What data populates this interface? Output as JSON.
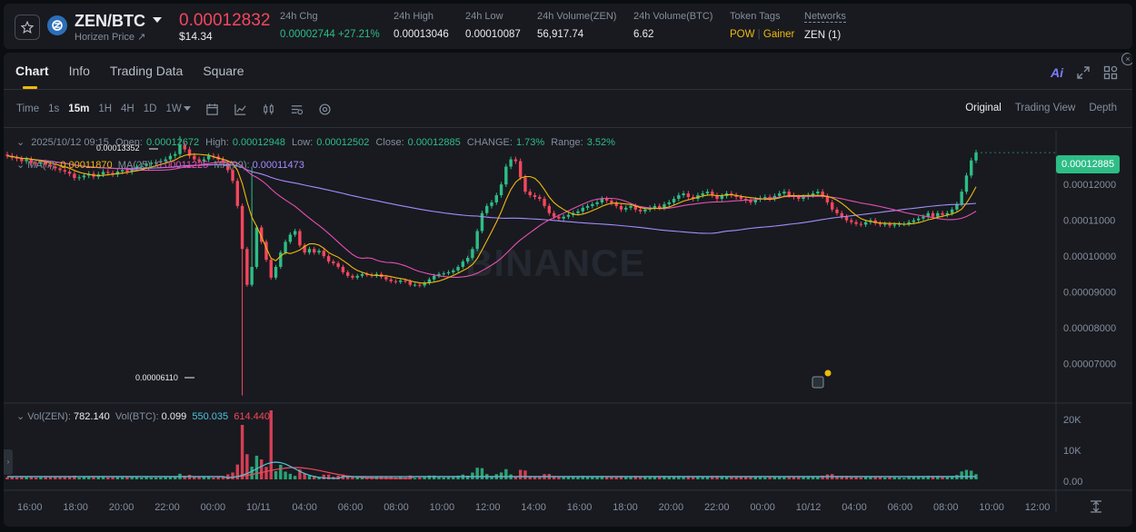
{
  "ticker": {
    "pair": "ZEN/BTC",
    "coin_name": "Horizen Price",
    "last_price": "0.00012832",
    "usd_price": "$14.34",
    "stats": [
      {
        "label": "24h Chg",
        "value": "0.00002744 +27.21%"
      },
      {
        "label": "24h High",
        "value": "0.00013046"
      },
      {
        "label": "24h Low",
        "value": "0.00010087"
      },
      {
        "label": "24h Volume(ZEN)",
        "value": "56,917.74"
      },
      {
        "label": "24h Volume(BTC)",
        "value": "6.62"
      }
    ],
    "token_tags_label": "Token Tags",
    "tag1": "POW",
    "tag2": "Gainer",
    "networks_label": "Networks",
    "networks_value": "ZEN (1)"
  },
  "tabs": [
    "Chart",
    "Info",
    "Trading Data",
    "Square"
  ],
  "ai_label": "Ai",
  "toolbar": {
    "time_label": "Time",
    "intervals": [
      "1s",
      "15m",
      "1H",
      "4H",
      "1D",
      "1W"
    ]
  },
  "views": [
    "Original",
    "Trading View",
    "Depth"
  ],
  "ohlc": {
    "date": "2025/10/12 09:15",
    "open_label": "Open:",
    "open": "0.00012672",
    "high_label": "High:",
    "high": "0.00012948",
    "low_label": "Low:",
    "low": "0.00012502",
    "close_label": "Close:",
    "close": "0.00012885",
    "change_label": "CHANGE:",
    "change": "1.73%",
    "range_label": "Range:",
    "range": "3.52%"
  },
  "ma": {
    "ma7_label": "MA(7)",
    "ma7": "0.00011870",
    "ma25_label": "MA(25)",
    "ma25": "0.00011225",
    "ma99_label": "MA(99)",
    "ma99": "0.00011473"
  },
  "current_price_tag": "0.00012885",
  "high_marker": "0.00013352",
  "low_marker": "0.00006110",
  "watermark": "BINANCE",
  "volume": {
    "zen_label": "Vol(ZEN):",
    "zen": "782.140",
    "btc_label": "Vol(BTC):",
    "btc": "0.099",
    "ma1": "550.035",
    "ma2": "614.440"
  },
  "colors": {
    "up": "#2ebd85",
    "down": "#f6465d",
    "ma7": "#f0b90b",
    "ma25": "#e84fb0",
    "ma99": "#a78bfa",
    "accent": "#f0b90b"
  },
  "chart_data": {
    "type": "candlestick",
    "price_axis": [
      "0.00012000",
      "0.00011000",
      "0.00010000",
      "0.00009000",
      "0.00008000",
      "0.00007000"
    ],
    "volume_axis": [
      "20K",
      "10K",
      "0.00"
    ],
    "time_axis": [
      "16:00",
      "18:00",
      "20:00",
      "22:00",
      "00:00",
      "10/11",
      "04:00",
      "06:00",
      "08:00",
      "10:00",
      "12:00",
      "14:00",
      "16:00",
      "18:00",
      "20:00",
      "22:00",
      "00:00",
      "10/12",
      "04:00",
      "06:00",
      "08:00",
      "10:00",
      "12:00"
    ],
    "ylim": [
      6e-05,
      0.000135
    ],
    "close": [
      0.000128,
      0.0001275,
      0.0001272,
      0.0001265,
      0.000127,
      0.000126,
      0.0001258,
      0.0001262,
      0.0001255,
      0.000125,
      0.0001245,
      0.000124,
      0.0001236,
      0.000123,
      0.0001218,
      0.000122,
      0.0001225,
      0.000123,
      0.0001222,
      0.0001228,
      0.0001235,
      0.0001232,
      0.0001228,
      0.0001236,
      0.000124,
      0.0001235,
      0.0001245,
      0.000125,
      0.0001252,
      0.0001258,
      0.000126,
      0.0001262,
      0.0001265,
      0.000127,
      0.000128,
      0.0001285,
      0.000131,
      0.0001298,
      0.000128,
      0.000127,
      0.0001265,
      0.000127,
      0.000128,
      0.0001278,
      0.000127,
      0.000126,
      0.000124,
      0.000121,
      0.000114,
      0.000102,
      9.2e-05,
      9.7e-05,
      0.000108,
      0.000104,
      9.9e-05,
      9.4e-05,
      9.7e-05,
      0.000101,
      0.000104,
      0.000106,
      0.000107,
      0.000103,
      0.000101,
      0.000102,
      0.000101,
      0.0001015,
      0.0001,
      9.85e-05,
      9.8e-05,
      9.7e-05,
      9.55e-05,
      9.45e-05,
      9.4e-05,
      9.45e-05,
      9.5e-05,
      9.48e-05,
      9.45e-05,
      9.5e-05,
      9.42e-05,
      9.35e-05,
      9.3e-05,
      9.28e-05,
      9.32e-05,
      9.3e-05,
      9.2e-05,
      9.2e-05,
      9.18e-05,
      9.25e-05,
      9.35e-05,
      9.45e-05,
      9.5e-05,
      9.52e-05,
      9.55e-05,
      9.6e-05,
      9.7e-05,
      9.85e-05,
      9.95e-05,
      0.000102,
      0.000107,
      0.000112,
      0.000114,
      0.000115,
      0.000117,
      0.00012,
      0.000125,
      0.000127,
      0.0001265,
      0.000122,
      0.000118,
      0.000117,
      0.0001165,
      0.000116,
      0.000114,
      0.000112,
      0.000111,
      0.0001105,
      0.000111,
      0.0001115,
      0.000112,
      0.0001125,
      0.0001135,
      0.000114,
      0.0001145,
      0.000115,
      0.000116,
      0.0001155,
      0.0001148,
      0.000114,
      0.000113,
      0.0001135,
      0.000114,
      0.000113,
      0.0001125,
      0.000113,
      0.0001135,
      0.000114,
      0.0001135,
      0.0001145,
      0.000115,
      0.000116,
      0.000117,
      0.0001175,
      0.0001165,
      0.000116,
      0.000117,
      0.0001175,
      0.000118,
      0.000117,
      0.000116,
      0.0001168,
      0.0001175,
      0.000117,
      0.0001165,
      0.000116,
      0.0001155,
      0.000115,
      0.0001158,
      0.0001162,
      0.0001165,
      0.000116,
      0.0001168,
      0.0001175,
      0.000118,
      0.000117,
      0.0001165,
      0.000116,
      0.0001165,
      0.000117,
      0.0001175,
      0.000118,
      0.0001168,
      0.000115,
      0.000113,
      0.000112,
      0.000111,
      0.00011,
      0.0001095,
      0.000109,
      0.0001088,
      0.0001095,
      0.00011,
      0.0001092,
      0.0001088,
      0.000109,
      0.0001085,
      0.0001088,
      0.000109,
      0.000109,
      0.0001095,
      0.00011,
      0.0001105,
      0.000111,
      0.000112,
      0.000111,
      0.000112,
      0.0001115,
      0.000112,
      0.000113,
      0.0001145,
      0.000118,
      0.0001225,
      0.0001267,
      0.0001289
    ]
  }
}
